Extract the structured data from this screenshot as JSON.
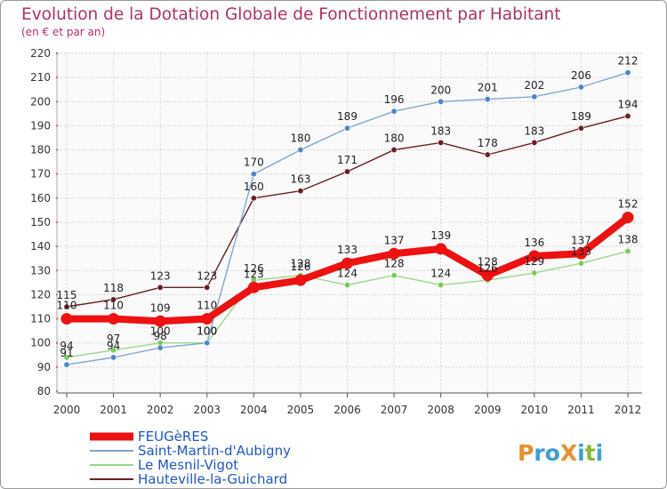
{
  "chart_data": {
    "type": "line",
    "title": "Evolution de la Dotation Globale de Fonctionnement par Habitant",
    "subtitle": "(en € et par an)",
    "xlabel": "",
    "ylabel": "",
    "ylim": [
      80,
      220
    ],
    "yticks": [
      80,
      90,
      100,
      110,
      120,
      130,
      140,
      150,
      160,
      170,
      180,
      190,
      200,
      210,
      220
    ],
    "categories": [
      "2000",
      "2001",
      "2002",
      "2003",
      "2004",
      "2005",
      "2006",
      "2007",
      "2008",
      "2009",
      "2010",
      "2011",
      "2012"
    ],
    "grid": true,
    "legend_position": "bottom-left",
    "series": [
      {
        "name": "Hauteville-la-Guichard",
        "color": "#6b1f24",
        "marker": "#6b1f24",
        "values": [
          115,
          118,
          123,
          123,
          160,
          163,
          171,
          180,
          183,
          178,
          183,
          189,
          194
        ],
        "labels": [
          "115",
          "118",
          "123",
          "123",
          "160",
          "163",
          "171",
          "180",
          "183",
          "178",
          "183",
          "189",
          "194"
        ]
      },
      {
        "name": "Le Mesnil-Vigot",
        "color": "#9ad88a",
        "marker": "#77cc55",
        "values": [
          94,
          97,
          100,
          100,
          126,
          128,
          124,
          128,
          124,
          126,
          129,
          133,
          138
        ],
        "labels": [
          "94",
          "97",
          "100",
          "100",
          "126",
          "128",
          "124",
          "128",
          "124",
          "126",
          "129",
          "133",
          "138"
        ]
      },
      {
        "name": "Saint-Martin-d'Aubigny",
        "color": "#7fa7cf",
        "marker": "#4a88c8",
        "values": [
          91,
          94,
          98,
          100,
          170,
          180,
          189,
          196,
          200,
          201,
          202,
          206,
          212
        ],
        "labels": [
          "91",
          "94",
          "98",
          "100",
          "170",
          "180",
          "189",
          "196",
          "200",
          "201",
          "202",
          "206",
          "212"
        ]
      },
      {
        "name": "FEUGèRES",
        "color": "#ee1111",
        "marker": "#ee1111",
        "values": [
          110,
          110,
          109,
          110,
          123,
          126,
          133,
          137,
          139,
          128,
          136,
          137,
          152
        ],
        "labels": [
          "110",
          "110",
          "109",
          "110",
          "123",
          "126",
          "133",
          "137",
          "139",
          "128",
          "136",
          "137",
          "152"
        ]
      }
    ],
    "legend": [
      {
        "name": "FEUGèRES",
        "color": "#ee1111"
      },
      {
        "name": "Saint-Martin-d'Aubigny",
        "color": "#7fa7cf"
      },
      {
        "name": "Le Mesnil-Vigot",
        "color": "#9ad88a"
      },
      {
        "name": "Hauteville-la-Guichard",
        "color": "#6b1f24"
      }
    ]
  },
  "logo": {
    "text": "ProXiti",
    "letters": [
      {
        "ch": "P",
        "color": "#e8902a"
      },
      {
        "ch": "r",
        "color": "#3aa0d8"
      },
      {
        "ch": "o",
        "color": "#3aa0d8"
      },
      {
        "ch": "X",
        "color": "#e8902a"
      },
      {
        "ch": "i",
        "color": "#3aa0d8"
      },
      {
        "ch": "t",
        "color": "#88bb33"
      },
      {
        "ch": "i",
        "color": "#3aa0d8"
      }
    ]
  }
}
